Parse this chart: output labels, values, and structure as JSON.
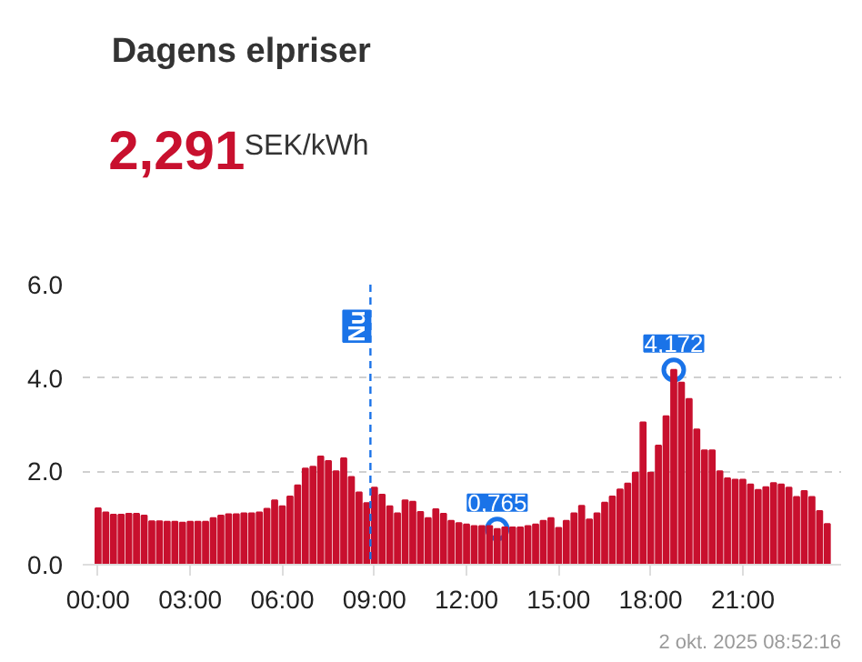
{
  "chart_data": {
    "type": "bar",
    "title": "Dagens elpriser",
    "annotations": [
      "2,291",
      "SEK/kWh",
      "2 okt. 2025 08:52:16",
      {
        "text": "0,765",
        "x": 13.0,
        "y": 0.765
      },
      {
        "text": "4,172",
        "x": 18.75,
        "y": 4.172
      }
    ],
    "x": [
      0,
      0.25,
      0.5,
      0.75,
      1,
      1.25,
      1.5,
      1.75,
      2,
      2.25,
      2.5,
      2.75,
      3,
      3.25,
      3.5,
      3.75,
      4,
      4.25,
      4.5,
      4.75,
      5,
      5.25,
      5.5,
      5.75,
      6,
      6.25,
      6.5,
      6.75,
      7,
      7.25,
      7.5,
      7.75,
      8,
      8.25,
      8.5,
      8.75,
      9,
      9.25,
      9.5,
      9.75,
      10,
      10.25,
      10.5,
      10.75,
      11,
      11.25,
      11.5,
      11.75,
      12,
      12.25,
      12.5,
      12.75,
      13,
      13.25,
      13.5,
      13.75,
      14,
      14.25,
      14.5,
      14.75,
      15,
      15.25,
      15.5,
      15.75,
      16,
      16.25,
      16.5,
      16.75,
      17,
      17.25,
      17.5,
      17.75,
      18,
      18.25,
      18.5,
      18.75,
      19,
      19.25,
      19.5,
      19.75,
      20,
      20.25,
      20.5,
      20.75,
      21,
      21.25,
      21.5,
      21.75,
      22,
      22.25,
      22.5,
      22.75,
      23,
      23.25,
      23.5,
      23.75
    ],
    "values": [
      1.21,
      1.12,
      1.07,
      1.07,
      1.09,
      1.09,
      1.05,
      0.93,
      0.93,
      0.92,
      0.92,
      0.9,
      0.92,
      0.92,
      0.92,
      1.0,
      1.05,
      1.08,
      1.08,
      1.1,
      1.1,
      1.12,
      1.2,
      1.38,
      1.25,
      1.46,
      1.7,
      2.06,
      2.1,
      2.32,
      2.22,
      2.0,
      2.28,
      1.88,
      1.55,
      1.32,
      1.65,
      1.5,
      1.25,
      1.1,
      1.38,
      1.35,
      1.13,
      1.0,
      1.19,
      1.09,
      0.94,
      0.89,
      0.86,
      0.83,
      0.83,
      0.83,
      0.765,
      0.8,
      0.8,
      0.8,
      0.83,
      0.86,
      0.94,
      1.0,
      0.79,
      0.94,
      1.1,
      1.26,
      0.97,
      1.1,
      1.33,
      1.46,
      1.61,
      1.74,
      1.97,
      3.05,
      1.97,
      2.55,
      3.18,
      4.172,
      3.9,
      3.55,
      2.9,
      2.45,
      2.45,
      2.0,
      1.85,
      1.82,
      1.82,
      1.72,
      1.6,
      1.66,
      1.75,
      1.72,
      1.65,
      1.45,
      1.58,
      1.45,
      1.15,
      0.87
    ],
    "color": "#c8102e",
    "xlim": [
      -0.5,
      24.2
    ],
    "xticks": [
      {
        "value": 0,
        "label": "00:00"
      },
      {
        "value": 3,
        "label": "03:00"
      },
      {
        "value": 6,
        "label": "06:00"
      },
      {
        "value": 9,
        "label": "09:00"
      },
      {
        "value": 12,
        "label": "12:00"
      },
      {
        "value": 15,
        "label": "15:00"
      },
      {
        "value": 18,
        "label": "18:00"
      },
      {
        "value": 21,
        "label": "21:00"
      }
    ],
    "ylim": [
      0,
      6
    ],
    "yticks": [
      {
        "value": 0,
        "label": "0.0"
      },
      {
        "value": 2,
        "label": "2.0"
      },
      {
        "value": 4,
        "label": "4.0"
      },
      {
        "value": 6,
        "label": "6.0"
      }
    ],
    "grid": "y",
    "ref_lines": [
      {
        "axis": "x",
        "value": 8.87,
        "label": "Nu",
        "color": "#1a73e8",
        "line_style": "dashed"
      }
    ]
  }
}
